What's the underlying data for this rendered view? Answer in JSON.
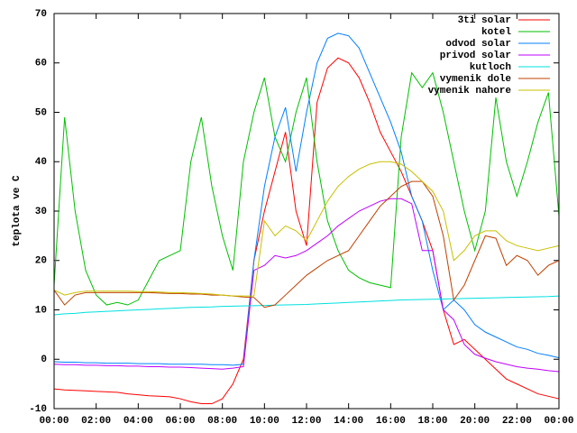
{
  "chart_data": {
    "type": "line",
    "ylabel": "teplota ve C",
    "xlim": [
      0,
      24
    ],
    "xticks": [
      {
        "value": 0,
        "label": "00:00"
      },
      {
        "value": 2,
        "label": "02:00"
      },
      {
        "value": 4,
        "label": "04:00"
      },
      {
        "value": 6,
        "label": "06:00"
      },
      {
        "value": 8,
        "label": "08:00"
      },
      {
        "value": 10,
        "label": "10:00"
      },
      {
        "value": 12,
        "label": "12:00"
      },
      {
        "value": 14,
        "label": "14:00"
      },
      {
        "value": 16,
        "label": "16:00"
      },
      {
        "value": 18,
        "label": "18:00"
      },
      {
        "value": 20,
        "label": "20:00"
      },
      {
        "value": 22,
        "label": "22:00"
      },
      {
        "value": 24,
        "label": "00:00"
      }
    ],
    "ylim": [
      -10,
      70
    ],
    "yticks": [
      -10,
      0,
      10,
      20,
      30,
      40,
      50,
      60,
      70
    ],
    "grid": false,
    "legend": "top-right",
    "x": [
      0,
      0.5,
      1,
      1.5,
      2,
      2.5,
      3,
      3.5,
      4,
      4.5,
      5,
      5.5,
      6,
      6.5,
      7,
      7.5,
      8,
      8.5,
      9,
      9.5,
      10,
      10.5,
      11,
      11.5,
      12,
      12.5,
      13,
      13.5,
      14,
      14.5,
      15,
      15.5,
      16,
      16.5,
      17,
      17.5,
      18,
      18.5,
      19,
      19.5,
      20,
      20.5,
      21,
      21.5,
      22,
      22.5,
      23,
      23.5,
      24
    ],
    "series": [
      {
        "name": "3ti solar",
        "color": "#ff0000",
        "values": [
          -6,
          -6.2,
          -6.3,
          -6.4,
          -6.5,
          -6.6,
          -6.7,
          -7,
          -7.2,
          -7.4,
          -7.5,
          -7.6,
          -8,
          -8.6,
          -9,
          -9,
          -8,
          -5,
          0,
          20,
          30,
          38,
          46,
          30,
          23,
          52,
          59,
          61,
          60,
          57,
          52,
          46,
          42,
          38,
          33,
          28,
          22,
          10,
          3,
          4,
          2,
          0,
          -2,
          -4,
          -5,
          -6,
          -7,
          -7.5,
          -8
        ]
      },
      {
        "name": "kotel",
        "color": "#00c000",
        "values": [
          15,
          49,
          30,
          18,
          13,
          11,
          11.5,
          11,
          12,
          16,
          20,
          21,
          22,
          40,
          49,
          35,
          25,
          18,
          40,
          50,
          57,
          45,
          40,
          50,
          57,
          40,
          28,
          22,
          18,
          16.5,
          15.5,
          15,
          14.5,
          45,
          58,
          55,
          58,
          50,
          40,
          30,
          22,
          30,
          53,
          40,
          33,
          40,
          48,
          54,
          29
        ]
      },
      {
        "name": "odvod solar",
        "color": "#0080ff",
        "values": [
          -0.5,
          -0.6,
          -0.6,
          -0.7,
          -0.7,
          -0.8,
          -0.8,
          -0.8,
          -0.9,
          -0.9,
          -0.9,
          -1,
          -1,
          -1,
          -1,
          -1.1,
          -1.1,
          -1.2,
          -1,
          20,
          35,
          45,
          51,
          38,
          50,
          60,
          65,
          66,
          65.5,
          63,
          58,
          53,
          48,
          42,
          33,
          28,
          18,
          10,
          12,
          10,
          7,
          5.5,
          4.5,
          3.5,
          2.5,
          2,
          1.2,
          0.8,
          0.3
        ]
      },
      {
        "name": "privod solar",
        "color": "#c000ff",
        "values": [
          -1,
          -1.1,
          -1.1,
          -1.2,
          -1.2,
          -1.3,
          -1.3,
          -1.4,
          -1.4,
          -1.5,
          -1.5,
          -1.6,
          -1.6,
          -1.7,
          -1.8,
          -1.9,
          -2,
          -1.8,
          -1.5,
          18,
          19,
          21,
          20.5,
          21,
          22,
          23.5,
          25,
          27,
          28.5,
          30,
          31,
          32,
          32.5,
          32.5,
          31.5,
          22,
          22,
          10,
          8,
          3,
          1,
          0.2,
          -0.5,
          -1,
          -1.5,
          -1.8,
          -2,
          -2.3,
          -2.5
        ]
      },
      {
        "name": "kutloch",
        "color": "#00e0e0",
        "values": [
          9,
          9.2,
          9.3,
          9.5,
          9.6,
          9.7,
          9.8,
          9.9,
          10,
          10.1,
          10.2,
          10.3,
          10.4,
          10.5,
          10.55,
          10.6,
          10.7,
          10.75,
          10.8,
          10.85,
          10.9,
          10.95,
          11,
          11.05,
          11.1,
          11.2,
          11.3,
          11.4,
          11.5,
          11.6,
          11.7,
          11.8,
          11.9,
          12,
          12.05,
          12.1,
          12.15,
          12.2,
          12.25,
          12.3,
          12.35,
          12.4,
          12.45,
          12.5,
          12.55,
          12.6,
          12.65,
          12.7,
          12.8
        ]
      },
      {
        "name": "vymenik dole",
        "color": "#c04000",
        "values": [
          14,
          11,
          13,
          13.5,
          13.5,
          13.5,
          13.5,
          13.5,
          13.5,
          13.5,
          13.4,
          13.3,
          13.3,
          13.2,
          13.2,
          13,
          13,
          12.8,
          12.6,
          12.5,
          10.5,
          11,
          13,
          15,
          17,
          18.5,
          20,
          21,
          22,
          25,
          28,
          31,
          33,
          35,
          36,
          36,
          33,
          25,
          12,
          15,
          20,
          25,
          24.5,
          19,
          21,
          20,
          17,
          19,
          20
        ]
      },
      {
        "name": "vymenik nahore",
        "color": "#c8c000",
        "values": [
          14,
          13,
          13.5,
          13.8,
          13.8,
          13.8,
          13.8,
          13.8,
          13.7,
          13.7,
          13.6,
          13.5,
          13.5,
          13.4,
          13.3,
          13.2,
          13,
          12.8,
          12.8,
          12.8,
          28,
          25,
          27,
          26,
          24,
          28,
          32,
          35,
          37,
          38.5,
          39.5,
          40,
          40,
          39.5,
          38,
          36,
          34,
          30,
          20,
          22,
          25,
          26,
          26,
          24,
          23,
          22.5,
          22,
          22.5,
          23
        ]
      }
    ]
  }
}
